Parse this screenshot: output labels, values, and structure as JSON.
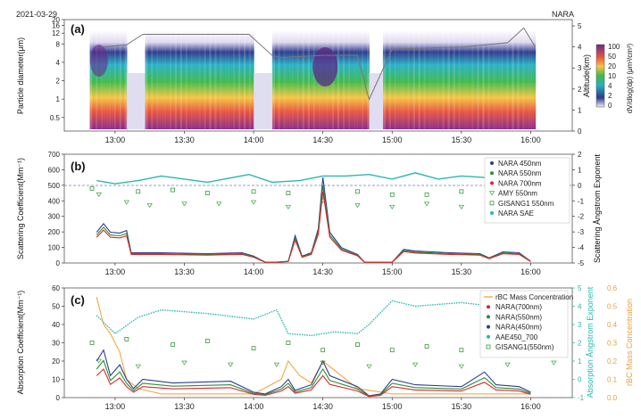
{
  "figure": {
    "date": "2021-03-29",
    "site": "NARA",
    "x_ticks": [
      "13:00",
      "13:30",
      "14:00",
      "14:30",
      "15:00",
      "15:30",
      "16:00"
    ]
  },
  "colors": {
    "nara450": "#2b3f8f",
    "nara550": "#2e8b3a",
    "nara700": "#d62b2b",
    "amy": "#4caf50",
    "gisang": "#3a9a3a",
    "sae": "#2ab8b0",
    "rbc": "#f0a030",
    "axis_teal": "#2ab8b0",
    "axis_orange": "#e8a040"
  },
  "chart_data": [
    {
      "type": "heatmap",
      "panel_label": "(a)",
      "ylabel": "Particle diameter(μm)",
      "y2label": "Altitude(km)",
      "colorbar_label": "dV/dlog(dp) (μm³/cm³)",
      "y_ticks": [
        "20",
        "16",
        "12",
        "8",
        "4",
        "2",
        "1",
        "0.5"
      ],
      "y2_ticks": [
        "5",
        "4",
        "3",
        "2",
        "1",
        "0"
      ],
      "colorbar_ticks": [
        "100",
        "50",
        "20",
        "10",
        "4",
        "2",
        "0"
      ],
      "altitude_km": [
        [
          "12:55",
          4.0
        ],
        [
          "13:05",
          4.1
        ],
        [
          "13:12",
          4.6
        ],
        [
          "13:20",
          4.6
        ],
        [
          "13:45",
          4.6
        ],
        [
          "13:58",
          4.6
        ],
        [
          "14:08",
          3.6
        ],
        [
          "14:12",
          3.5
        ],
        [
          "14:30",
          3.6
        ],
        [
          "14:45",
          3.6
        ],
        [
          "14:50",
          1.5
        ],
        [
          "15:00",
          3.9
        ],
        [
          "15:30",
          4.0
        ],
        [
          "15:50",
          4.2
        ],
        [
          "15:57",
          4.9
        ],
        [
          "16:02",
          4.0
        ]
      ]
    },
    {
      "type": "line",
      "panel_label": "(b)",
      "ylabel": "Scattering Coefficient(Mm⁻¹)",
      "y2label": "Scattering Ångstrom Exponent",
      "ylim": [
        0,
        700
      ],
      "y2lim": [
        -5,
        2
      ],
      "y_ticks": [
        "0",
        "100",
        "200",
        "300",
        "400",
        "500",
        "600",
        "700"
      ],
      "y2_ticks": [
        "2",
        "1",
        "0",
        "-1",
        "-2",
        "-3",
        "-4",
        "-5"
      ],
      "legend": [
        "NARA 450nm",
        "NARA 550nm",
        "NARA 700nm",
        "AMY 550nm",
        "GISANG1 550nm",
        "NARA SAE"
      ],
      "nara_550_points": [
        [
          "12:52",
          180
        ],
        [
          "12:55",
          230
        ],
        [
          "12:58",
          180
        ],
        [
          "13:02",
          175
        ],
        [
          "13:05",
          190
        ],
        [
          "13:07",
          60
        ],
        [
          "13:10",
          60
        ],
        [
          "13:20",
          60
        ],
        [
          "13:40",
          55
        ],
        [
          "13:55",
          60
        ],
        [
          "14:00",
          40
        ],
        [
          "14:05",
          5
        ],
        [
          "14:10",
          5
        ],
        [
          "14:15",
          10
        ],
        [
          "14:18",
          160
        ],
        [
          "14:21",
          40
        ],
        [
          "14:25",
          60
        ],
        [
          "14:28",
          200
        ],
        [
          "14:30",
          500
        ],
        [
          "14:33",
          180
        ],
        [
          "14:38",
          90
        ],
        [
          "14:45",
          50
        ],
        [
          "14:48",
          5
        ],
        [
          "14:52",
          5
        ],
        [
          "14:58",
          5
        ],
        [
          "15:00",
          5
        ],
        [
          "15:05",
          80
        ],
        [
          "15:10",
          70
        ],
        [
          "15:25",
          60
        ],
        [
          "15:38",
          55
        ],
        [
          "15:42",
          30
        ],
        [
          "15:48",
          65
        ],
        [
          "15:55",
          60
        ],
        [
          "16:00",
          10
        ]
      ],
      "sae_points": [
        [
          "12:52",
          0.3
        ],
        [
          "13:00",
          0.1
        ],
        [
          "13:10",
          0.3
        ],
        [
          "13:20",
          0.6
        ],
        [
          "13:40",
          0.2
        ],
        [
          "13:58",
          0.7
        ],
        [
          "14:08",
          0.2
        ],
        [
          "14:20",
          0.3
        ],
        [
          "14:30",
          0.6
        ],
        [
          "14:40",
          0.6
        ],
        [
          "14:50",
          0.7
        ],
        [
          "15:00",
          0.4
        ],
        [
          "15:10",
          0.8
        ],
        [
          "15:20",
          0.4
        ],
        [
          "15:30",
          0.6
        ],
        [
          "15:40",
          0.5
        ],
        [
          "15:50",
          0.4
        ],
        [
          "16:00",
          0.3
        ]
      ],
      "amy_points": [
        [
          "12:53",
          -0.6
        ],
        [
          "13:05",
          -1.1
        ],
        [
          "13:15",
          -1.3
        ],
        [
          "13:30",
          -1.2
        ],
        [
          "13:45",
          -1.2
        ],
        [
          "14:00",
          -1.1
        ],
        [
          "14:15",
          -1.4
        ],
        [
          "14:30",
          -1.0
        ],
        [
          "14:45",
          -1.3
        ],
        [
          "15:00",
          -1.4
        ],
        [
          "15:15",
          -1.2
        ],
        [
          "15:30",
          -1.4
        ],
        [
          "15:45",
          -1.5
        ],
        [
          "16:00",
          -1.3
        ],
        [
          "16:10",
          -1.4
        ]
      ],
      "gisang_points": [
        [
          "12:50",
          -0.2
        ],
        [
          "13:10",
          -0.4
        ],
        [
          "13:25",
          -0.3
        ],
        [
          "13:40",
          -0.5
        ],
        [
          "14:00",
          -0.4
        ],
        [
          "14:15",
          -0.5
        ],
        [
          "14:30",
          -0.7
        ],
        [
          "14:45",
          -0.4
        ],
        [
          "15:00",
          -0.6
        ],
        [
          "15:15",
          -0.6
        ],
        [
          "15:30",
          -0.4
        ],
        [
          "15:45",
          -0.5
        ],
        [
          "16:00",
          -0.7
        ],
        [
          "16:15",
          -0.6
        ]
      ]
    },
    {
      "type": "line",
      "panel_label": "(c)",
      "ylabel": "Absorption Coefficient(Mm⁻¹)",
      "y2label": "Absorption Ångstrom Exponent",
      "y3label": "rBC Mass Concentration",
      "ylim": [
        0,
        60
      ],
      "y2lim": [
        -1,
        5
      ],
      "y3lim": [
        0,
        0.6
      ],
      "y_ticks": [
        "0",
        "10",
        "20",
        "30",
        "40",
        "50",
        "60"
      ],
      "y2_ticks": [
        "5",
        "4",
        "3",
        "2",
        "1",
        "0",
        "-1"
      ],
      "y3_ticks": [
        "0.6",
        "0.5",
        "0.4",
        "0.3",
        "0.2",
        "0.1",
        "0.0"
      ],
      "legend": [
        "rBC Mass Concentration",
        "NARA(700nm)",
        "NARA(550nm)",
        "NARA(450nm)",
        "AAE450_700",
        "GISANG1(550nm)"
      ],
      "nara_450_points": [
        [
          "12:52",
          20
        ],
        [
          "12:55",
          26
        ],
        [
          "12:58",
          12
        ],
        [
          "13:02",
          18
        ],
        [
          "13:05",
          10
        ],
        [
          "13:08",
          5
        ],
        [
          "13:12",
          10
        ],
        [
          "13:25",
          8
        ],
        [
          "13:50",
          9
        ],
        [
          "14:00",
          3
        ],
        [
          "14:05",
          2
        ],
        [
          "14:12",
          6
        ],
        [
          "14:15",
          10
        ],
        [
          "14:18",
          4
        ],
        [
          "14:25",
          7
        ],
        [
          "14:30",
          20
        ],
        [
          "14:33",
          12
        ],
        [
          "14:45",
          6
        ],
        [
          "14:50",
          1
        ],
        [
          "14:55",
          2
        ],
        [
          "15:00",
          10
        ],
        [
          "15:10",
          7
        ],
        [
          "15:30",
          6
        ],
        [
          "15:40",
          14
        ],
        [
          "15:45",
          7
        ],
        [
          "15:55",
          6
        ],
        [
          "16:00",
          3
        ]
      ],
      "aae_points": [
        [
          "12:52",
          3.5
        ],
        [
          "13:00",
          2.5
        ],
        [
          "13:10",
          3.4
        ],
        [
          "13:20",
          3.8
        ],
        [
          "13:40",
          3.6
        ],
        [
          "14:00",
          3.3
        ],
        [
          "14:10",
          3.8
        ],
        [
          "14:15",
          2.5
        ],
        [
          "14:25",
          2.4
        ],
        [
          "14:35",
          2.6
        ],
        [
          "14:45",
          2.5
        ],
        [
          "14:50",
          3.0
        ],
        [
          "15:00",
          4.3
        ],
        [
          "15:10",
          4.0
        ],
        [
          "15:30",
          4.2
        ],
        [
          "15:50",
          3.9
        ],
        [
          "16:00",
          4.5
        ]
      ],
      "rbc_points": [
        [
          "12:52",
          0.55
        ],
        [
          "12:55",
          0.4
        ],
        [
          "12:58",
          0.35
        ],
        [
          "13:02",
          0.25
        ],
        [
          "13:05",
          0.1
        ],
        [
          "13:10",
          0.05
        ],
        [
          "13:20",
          0.02
        ],
        [
          "14:00",
          0.02
        ],
        [
          "14:12",
          0.1
        ],
        [
          "14:15",
          0.2
        ],
        [
          "14:20",
          0.12
        ],
        [
          "14:25",
          0.08
        ],
        [
          "14:30",
          0.2
        ],
        [
          "14:35",
          0.15
        ],
        [
          "14:45",
          0.05
        ],
        [
          "15:00",
          0.02
        ],
        [
          "16:00",
          0.02
        ]
      ]
    }
  ]
}
